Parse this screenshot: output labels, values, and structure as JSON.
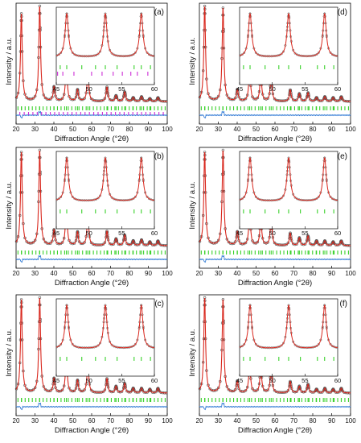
{
  "chart_data": [
    {
      "panel": "(a)",
      "type": "scatter",
      "xlabel": "Diffraction Angle (°2θ)",
      "ylabel": "Intensity / a.u.",
      "xlim": [
        20,
        100
      ],
      "xticks": [
        "20",
        "30",
        "40",
        "50",
        "60",
        "70",
        "80",
        "90",
        "100"
      ],
      "peaks_2theta": [
        22.8,
        32.5,
        40.1,
        46.6,
        52.5,
        58.0,
        68.1,
        72.9,
        77.5,
        82.0,
        86.4,
        90.8,
        95.1
      ],
      "relative_intensity": [
        0.92,
        1.0,
        0.15,
        0.4,
        0.12,
        0.32,
        0.15,
        0.06,
        0.1,
        0.04,
        0.05,
        0.03,
        0.04
      ],
      "series": [
        {
          "name": "",
          "role": "observed",
          "color": "#555555"
        },
        {
          "name": "",
          "role": "calculated",
          "color": "#d9271d"
        },
        {
          "name": "",
          "role": "difference",
          "color": "#1f6fd1"
        },
        {
          "name": "",
          "role": "reflection positions",
          "color": "#39d12a"
        },
        {
          "name": "",
          "role": "reflection positions (second phase)",
          "color": "#cc2bd6"
        }
      ],
      "inset": {
        "xlim": [
          45,
          60
        ],
        "xticks": [
          "45",
          "50",
          "55",
          "60"
        ],
        "peaks_2theta": [
          46.6,
          52.5,
          58.0
        ],
        "extra_phase": true
      }
    },
    {
      "panel": "(b)",
      "type": "scatter",
      "xlabel": "Diffraction Angle (°2θ)",
      "ylabel": "Intensity / a.u.",
      "xlim": [
        20,
        100
      ],
      "xticks": [
        "20",
        "30",
        "40",
        "50",
        "60",
        "70",
        "80",
        "90",
        "100"
      ],
      "peaks_2theta": [
        22.8,
        32.5,
        40.1,
        46.6,
        52.5,
        58.0,
        68.1,
        72.9,
        77.5,
        82.0,
        86.4,
        90.8,
        95.1
      ],
      "relative_intensity": [
        0.98,
        1.0,
        0.16,
        0.42,
        0.14,
        0.34,
        0.15,
        0.07,
        0.11,
        0.05,
        0.06,
        0.04,
        0.05
      ],
      "series": [
        {
          "name": "",
          "role": "observed",
          "color": "#555555"
        },
        {
          "name": "",
          "role": "calculated",
          "color": "#d9271d"
        },
        {
          "name": "",
          "role": "difference",
          "color": "#1f6fd1"
        },
        {
          "name": "",
          "role": "reflection positions",
          "color": "#39d12a"
        }
      ],
      "inset": {
        "xlim": [
          45,
          60
        ],
        "xticks": [
          "45",
          "50",
          "55",
          "60"
        ],
        "peaks_2theta": [
          46.6,
          52.5,
          58.0
        ],
        "extra_phase": false
      }
    },
    {
      "panel": "(c)",
      "type": "scatter",
      "xlabel": "Diffraction Angle (°2θ)",
      "ylabel": "Intensity / a.u.",
      "xlim": [
        20,
        100
      ],
      "xticks": [
        "20",
        "30",
        "40",
        "50",
        "60",
        "70",
        "80",
        "90",
        "100"
      ],
      "peaks_2theta": [
        22.8,
        32.5,
        40.1,
        46.6,
        52.5,
        58.0,
        68.1,
        72.9,
        77.5,
        82.0,
        86.4,
        90.8,
        95.1
      ],
      "relative_intensity": [
        0.98,
        1.0,
        0.15,
        0.4,
        0.13,
        0.33,
        0.15,
        0.07,
        0.1,
        0.05,
        0.05,
        0.04,
        0.05
      ],
      "series": [
        {
          "name": "",
          "role": "observed",
          "color": "#555555"
        },
        {
          "name": "",
          "role": "calculated",
          "color": "#d9271d"
        },
        {
          "name": "",
          "role": "difference",
          "color": "#1f6fd1"
        },
        {
          "name": "",
          "role": "reflection positions",
          "color": "#39d12a"
        }
      ],
      "inset": {
        "xlim": [
          45,
          60
        ],
        "xticks": [
          "45",
          "50",
          "55",
          "60"
        ],
        "peaks_2theta": [
          46.6,
          52.5,
          58.0
        ],
        "extra_phase": false
      }
    },
    {
      "panel": "(d)",
      "type": "scatter",
      "xlabel": "Diffraction Angle (°2θ)",
      "ylabel": "Intensity / a.u.",
      "xlim": [
        20,
        100
      ],
      "xticks": [
        "20",
        "30",
        "40",
        "50",
        "60",
        "70",
        "80",
        "90",
        "100"
      ],
      "peaks_2theta": [
        22.8,
        32.5,
        40.1,
        46.6,
        52.5,
        58.0,
        68.1,
        72.9,
        77.5,
        82.0,
        86.4,
        90.8,
        95.1
      ],
      "relative_intensity": [
        1.0,
        0.98,
        0.12,
        0.35,
        0.3,
        0.28,
        0.12,
        0.08,
        0.09,
        0.04,
        0.05,
        0.04,
        0.05
      ],
      "series": [
        {
          "name": "",
          "role": "observed",
          "color": "#555555"
        },
        {
          "name": "",
          "role": "calculated",
          "color": "#d9271d"
        },
        {
          "name": "",
          "role": "difference",
          "color": "#1f6fd1"
        },
        {
          "name": "",
          "role": "reflection positions",
          "color": "#39d12a"
        }
      ],
      "inset": {
        "xlim": [
          45,
          60
        ],
        "xticks": [
          "45",
          "50",
          "55",
          "60"
        ],
        "peaks_2theta": [
          46.6,
          52.5,
          58.0
        ],
        "extra_phase": false
      }
    },
    {
      "panel": "(e)",
      "type": "scatter",
      "xlabel": "Diffraction Angle (°2θ)",
      "ylabel": "Intensity / a.u.",
      "xlim": [
        20,
        100
      ],
      "xticks": [
        "20",
        "30",
        "40",
        "50",
        "60",
        "70",
        "80",
        "90",
        "100"
      ],
      "peaks_2theta": [
        22.8,
        32.5,
        40.1,
        46.6,
        52.5,
        58.0,
        68.1,
        72.9,
        77.5,
        82.0,
        86.4,
        90.8,
        95.1
      ],
      "relative_intensity": [
        0.98,
        1.0,
        0.14,
        0.36,
        0.3,
        0.3,
        0.13,
        0.08,
        0.1,
        0.05,
        0.05,
        0.04,
        0.05
      ],
      "series": [
        {
          "name": "",
          "role": "observed",
          "color": "#555555"
        },
        {
          "name": "",
          "role": "calculated",
          "color": "#d9271d"
        },
        {
          "name": "",
          "role": "difference",
          "color": "#1f6fd1"
        },
        {
          "name": "",
          "role": "reflection positions",
          "color": "#39d12a"
        }
      ],
      "inset": {
        "xlim": [
          45,
          60
        ],
        "xticks": [
          "45",
          "50",
          "55",
          "60"
        ],
        "peaks_2theta": [
          46.6,
          52.5,
          58.0
        ],
        "extra_phase": false
      }
    },
    {
      "panel": "(f)",
      "type": "scatter",
      "xlabel": "Diffraction Angle (°2θ)",
      "ylabel": "Intensity / a.u.",
      "xlim": [
        20,
        100
      ],
      "xticks": [
        "20",
        "30",
        "40",
        "50",
        "60",
        "70",
        "80",
        "90",
        "100"
      ],
      "peaks_2theta": [
        22.8,
        32.5,
        40.1,
        46.6,
        52.5,
        58.0,
        68.1,
        72.9,
        77.5,
        82.0,
        86.4,
        90.8,
        95.1
      ],
      "relative_intensity": [
        1.0,
        0.98,
        0.12,
        0.32,
        0.28,
        0.28,
        0.12,
        0.07,
        0.09,
        0.04,
        0.05,
        0.04,
        0.05
      ],
      "series": [
        {
          "name": "",
          "role": "observed",
          "color": "#555555"
        },
        {
          "name": "",
          "role": "calculated",
          "color": "#d9271d"
        },
        {
          "name": "",
          "role": "difference",
          "color": "#1f6fd1"
        },
        {
          "name": "",
          "role": "reflection positions",
          "color": "#39d12a"
        }
      ],
      "inset": {
        "xlim": [
          45,
          60
        ],
        "xticks": [
          "45",
          "50",
          "55",
          "60"
        ],
        "peaks_2theta": [
          46.6,
          52.5,
          58.0
        ],
        "extra_phase": false
      }
    }
  ]
}
